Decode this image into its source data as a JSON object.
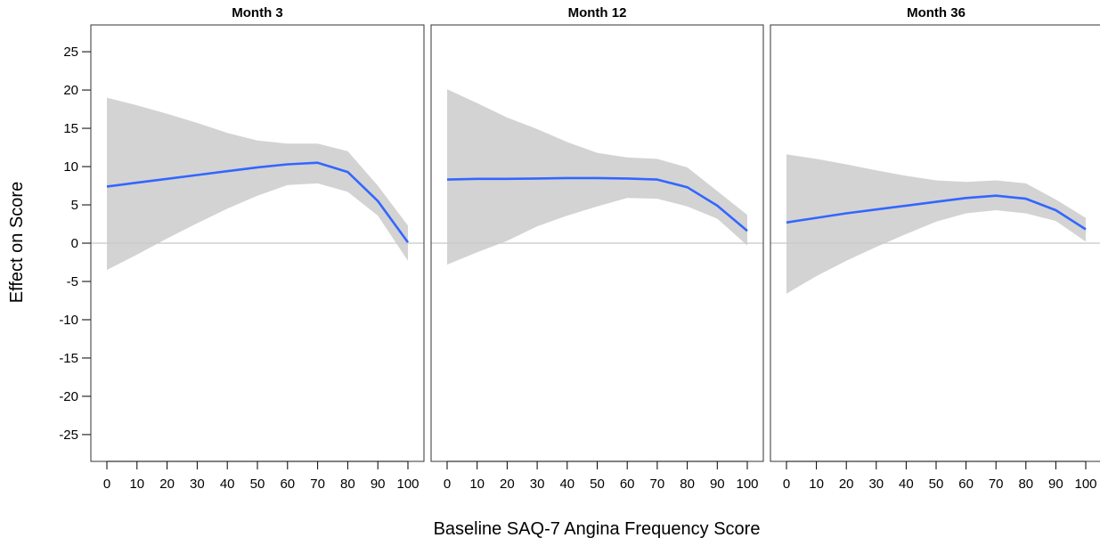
{
  "chart_data": {
    "type": "line",
    "xlabel": "Baseline SAQ-7 Angina Frequency Score",
    "ylabel": "Effect on Score",
    "xlim": [
      0,
      100
    ],
    "ylim": [
      -28.5,
      28.5
    ],
    "x_ticks": [
      0,
      10,
      20,
      30,
      40,
      50,
      60,
      70,
      80,
      90,
      100
    ],
    "y_ticks": [
      -25,
      -20,
      -15,
      -10,
      -5,
      0,
      5,
      10,
      15,
      20,
      25
    ],
    "reference_line": 0,
    "colors": {
      "line": "#3366FF",
      "band": "#d3d3d3",
      "reference": "#c8c8c8",
      "frame": "#333333"
    },
    "panels": [
      {
        "title": "Month 3",
        "x": [
          0,
          10,
          20,
          30,
          40,
          50,
          60,
          70,
          80,
          90,
          100
        ],
        "estimate": [
          7.4,
          7.9,
          8.4,
          8.9,
          9.4,
          9.9,
          10.3,
          10.5,
          9.3,
          5.5,
          0.1
        ],
        "lower": [
          -3.5,
          -1.5,
          0.6,
          2.6,
          4.5,
          6.2,
          7.6,
          7.8,
          6.7,
          3.6,
          -2.3
        ],
        "upper": [
          19.0,
          18.0,
          16.9,
          15.7,
          14.4,
          13.4,
          13.0,
          13.0,
          12.0,
          7.5,
          2.3
        ]
      },
      {
        "title": "Month 12",
        "x": [
          0,
          10,
          20,
          30,
          40,
          50,
          60,
          70,
          80,
          90,
          100
        ],
        "estimate": [
          8.3,
          8.4,
          8.4,
          8.45,
          8.5,
          8.5,
          8.45,
          8.3,
          7.3,
          4.9,
          1.6
        ],
        "lower": [
          -2.8,
          -1.2,
          0.3,
          2.2,
          3.6,
          4.8,
          5.9,
          5.8,
          4.8,
          3.2,
          -0.3
        ],
        "upper": [
          20.1,
          18.3,
          16.4,
          14.9,
          13.2,
          11.8,
          11.2,
          11.0,
          9.9,
          6.8,
          3.7
        ]
      },
      {
        "title": "Month 36",
        "x": [
          0,
          10,
          20,
          30,
          40,
          50,
          60,
          70,
          80,
          90,
          100
        ],
        "estimate": [
          2.7,
          3.3,
          3.9,
          4.4,
          4.9,
          5.4,
          5.9,
          6.2,
          5.8,
          4.3,
          1.8
        ],
        "lower": [
          -6.6,
          -4.3,
          -2.3,
          -0.5,
          1.2,
          2.8,
          3.9,
          4.3,
          3.9,
          2.9,
          0.2
        ],
        "upper": [
          11.6,
          11.0,
          10.3,
          9.5,
          8.8,
          8.2,
          8.0,
          8.2,
          7.8,
          5.7,
          3.3
        ]
      }
    ]
  }
}
